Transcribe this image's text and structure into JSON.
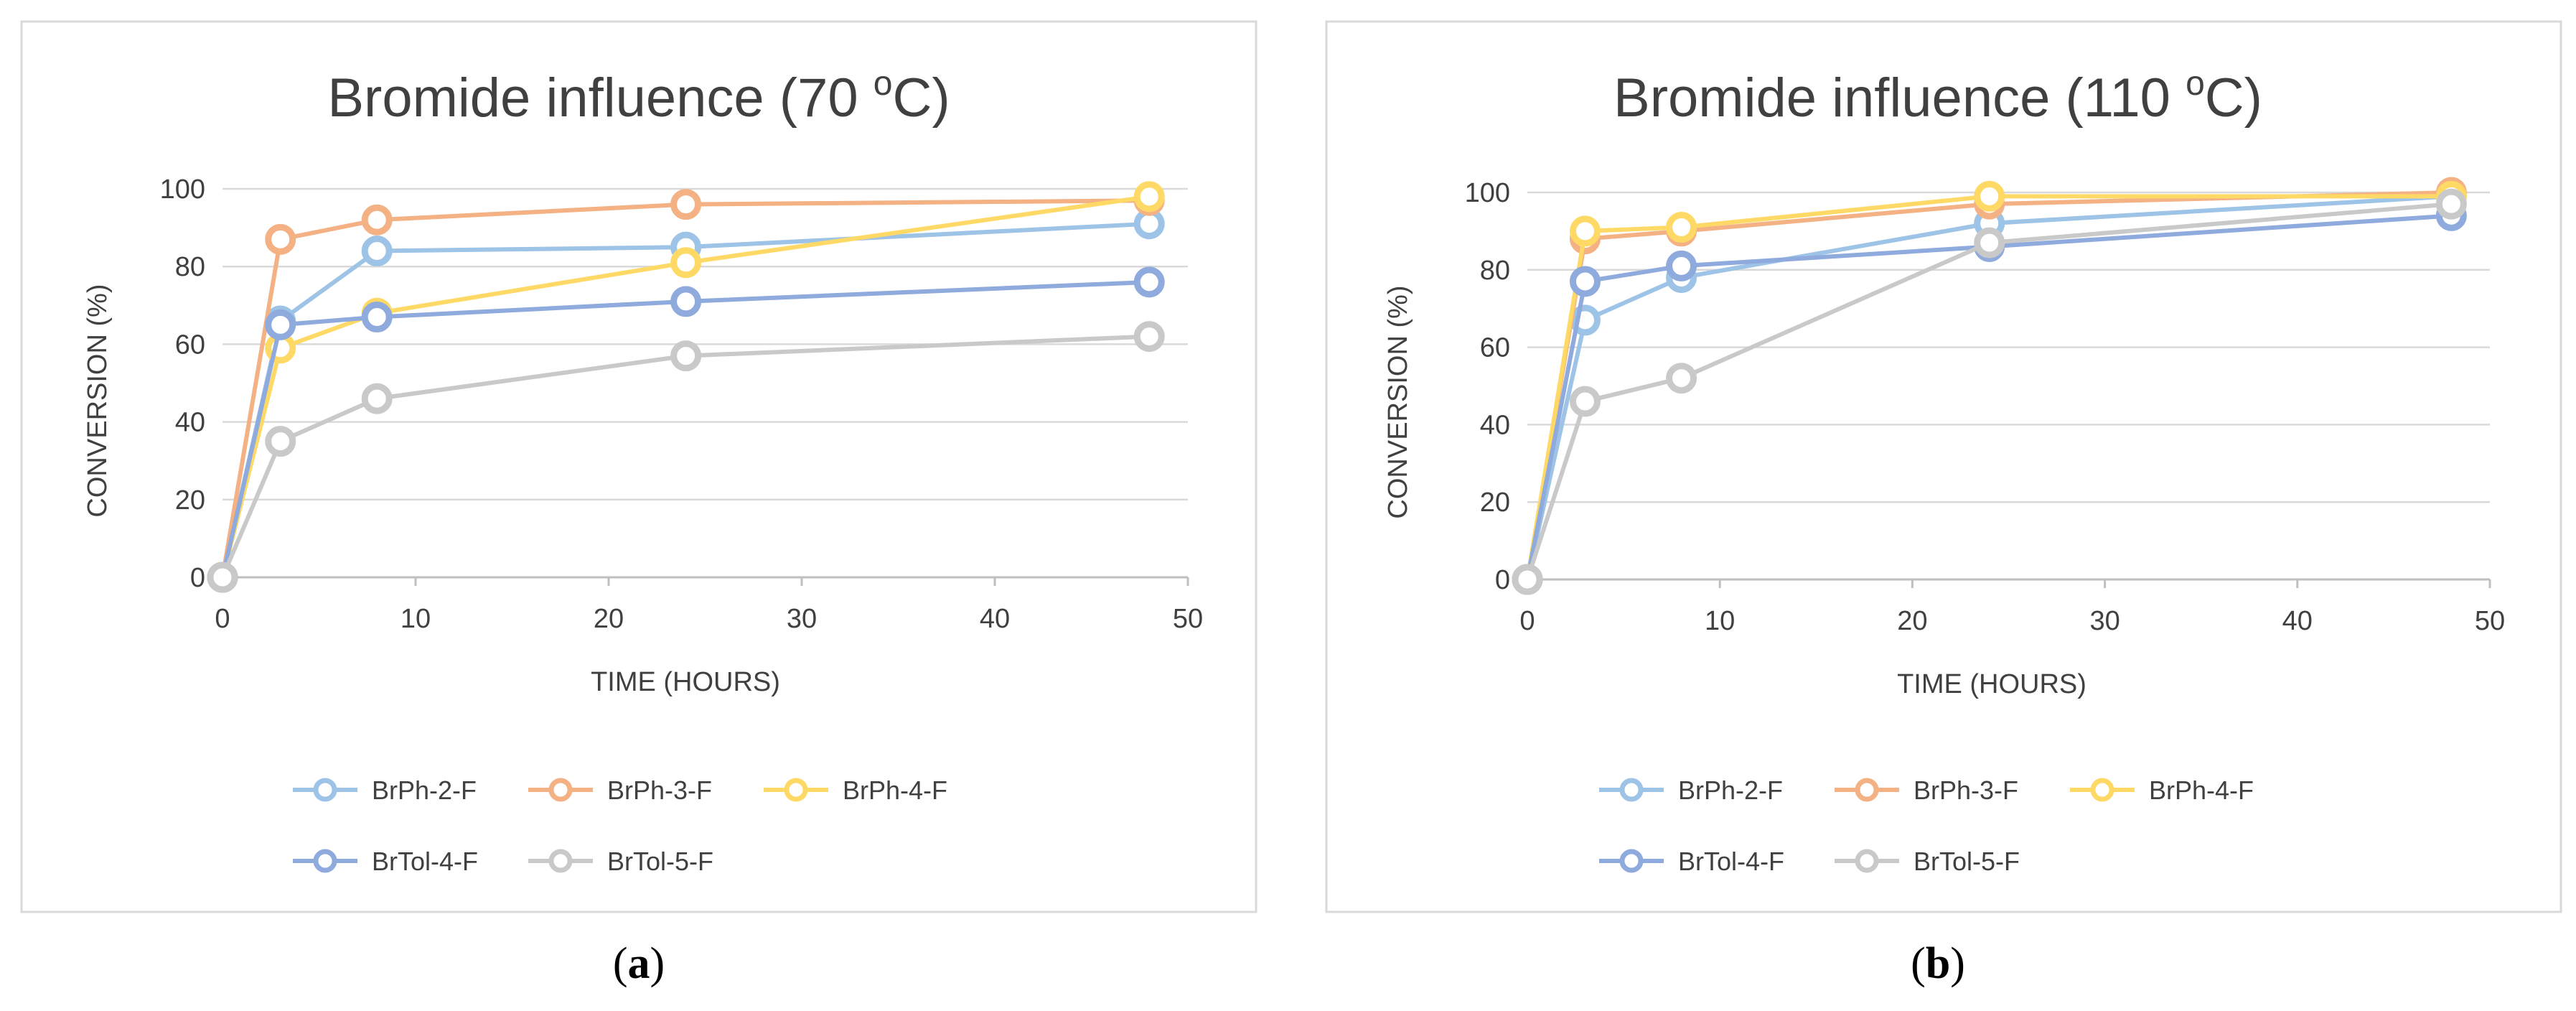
{
  "chart_data": [
    {
      "type": "line",
      "title": "Bromide influence (70 ",
      "title_sup": "o",
      "title_end": "C)",
      "xlabel": "TIME (HOURS)",
      "ylabel": "CONVERSION (%)",
      "xlim": [
        0,
        50
      ],
      "ylim": [
        0,
        100
      ],
      "xticks": [
        0,
        10,
        20,
        30,
        40,
        50
      ],
      "yticks": [
        0,
        20,
        40,
        60,
        80,
        100
      ],
      "grid": true,
      "legend_position": "bottom",
      "caption": "a",
      "series": [
        {
          "name": "BrPh-2-F",
          "color": "#9dc3e6",
          "x": [
            0,
            3,
            8,
            24,
            48
          ],
          "y": [
            0,
            66,
            84,
            85,
            91
          ]
        },
        {
          "name": "BrPh-3-F",
          "color": "#f4b183",
          "x": [
            0,
            3,
            8,
            24,
            48
          ],
          "y": [
            0,
            87,
            92,
            96,
            97
          ]
        },
        {
          "name": "BrPh-4-F",
          "color": "#ffd966",
          "x": [
            0,
            3,
            8,
            24,
            48
          ],
          "y": [
            0,
            59,
            68,
            81,
            98
          ]
        },
        {
          "name": "BrTol-4-F",
          "color": "#8faadc",
          "x": [
            0,
            3,
            8,
            24,
            48
          ],
          "y": [
            0,
            65,
            67,
            71,
            76
          ]
        },
        {
          "name": "BrTol-5-F",
          "color": "#c9c9c9",
          "x": [
            0,
            3,
            8,
            24,
            48
          ],
          "y": [
            0,
            35,
            46,
            57,
            62
          ]
        }
      ]
    },
    {
      "type": "line",
      "title": "Bromide influence (110 ",
      "title_sup": "o",
      "title_end": "C)",
      "xlabel": "TIME (HOURS)",
      "ylabel": "CONVERSION (%)",
      "xlim": [
        0,
        50
      ],
      "ylim": [
        0,
        100
      ],
      "xticks": [
        0,
        10,
        20,
        30,
        40,
        50
      ],
      "yticks": [
        0,
        20,
        40,
        60,
        80,
        100
      ],
      "grid": true,
      "legend_position": "bottom",
      "caption": "b",
      "series": [
        {
          "name": "BrPh-2-F",
          "color": "#9dc3e6",
          "x": [
            0,
            3,
            8,
            24,
            48
          ],
          "y": [
            0,
            67,
            78,
            92,
            99
          ]
        },
        {
          "name": "BrPh-3-F",
          "color": "#f4b183",
          "x": [
            0,
            3,
            8,
            24,
            48
          ],
          "y": [
            0,
            88,
            90,
            97,
            100
          ]
        },
        {
          "name": "BrPh-4-F",
          "color": "#ffd966",
          "x": [
            0,
            3,
            8,
            24,
            48
          ],
          "y": [
            0,
            90,
            91,
            99,
            99
          ]
        },
        {
          "name": "BrTol-4-F",
          "color": "#8faadc",
          "x": [
            0,
            3,
            8,
            24,
            48
          ],
          "y": [
            0,
            77,
            81,
            86,
            94
          ]
        },
        {
          "name": "BrTol-5-F",
          "color": "#c9c9c9",
          "x": [
            0,
            3,
            8,
            24,
            48
          ],
          "y": [
            0,
            46,
            52,
            87,
            97
          ]
        }
      ]
    }
  ]
}
